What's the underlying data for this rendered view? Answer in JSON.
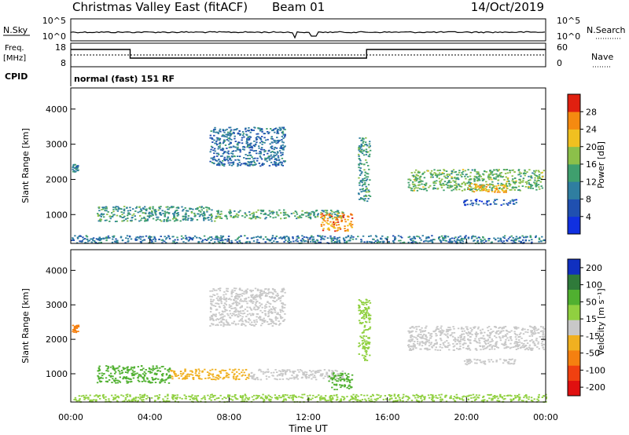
{
  "header": {
    "title": "Christmas Valley East (fitACF)",
    "beam": "Beam 01",
    "date": "14/Oct/2019"
  },
  "top_panels": {
    "nsky_label": "N.Sky",
    "nsky_ticks": [
      "10^5",
      "10^0"
    ],
    "nsearch_label": "N.Search",
    "nsearch_ticks": [
      "10^5",
      "10^0"
    ],
    "freq_label_1": "Freq.",
    "freq_label_2": "[MHz]",
    "freq_ticks": [
      "18",
      "8"
    ],
    "nave_label": "Nave",
    "nave_ticks": [
      "60",
      "0"
    ],
    "cpid_label": "CPID",
    "cpid_value": "normal (fast) 151 RF"
  },
  "chart_data": [
    {
      "type": "heatmap",
      "panel": "power",
      "ylabel": "Slant Range [km]",
      "yticks": [
        "1000",
        "2000",
        "3000",
        "4000"
      ],
      "ylim": [
        180,
        4600
      ],
      "xlim": [
        0,
        24
      ],
      "colorbar_label": "Power [dB]",
      "colorbar_ticks": [
        "4",
        "8",
        "12",
        "16",
        "20",
        "24",
        "28"
      ],
      "colorbar_range": [
        0,
        30
      ],
      "colors": [
        "#1030e0",
        "#2050b0",
        "#2f7ea0",
        "#3f9f6e",
        "#8cc04a",
        "#f0c020",
        "#f58a10",
        "#e02010"
      ],
      "echo_regions": [
        {
          "t_start": 0.05,
          "t_end": 0.35,
          "r_min": 2220,
          "r_max": 2450,
          "value": 10
        },
        {
          "t_start": 1.3,
          "t_end": 7.3,
          "r_min": 820,
          "r_max": 1250,
          "value": 12
        },
        {
          "t_start": 7.3,
          "t_end": 13.8,
          "r_min": 900,
          "r_max": 1150,
          "value": 13
        },
        {
          "t_start": 12.6,
          "t_end": 14.2,
          "r_min": 550,
          "r_max": 1050,
          "value": 24
        },
        {
          "t_start": 7.0,
          "t_end": 10.8,
          "r_min": 2400,
          "r_max": 3500,
          "value": 8
        },
        {
          "t_start": 14.5,
          "t_end": 15.1,
          "r_min": 1400,
          "r_max": 3200,
          "value": 12
        },
        {
          "t_start": 17.0,
          "t_end": 23.9,
          "r_min": 1700,
          "r_max": 2300,
          "value": 15
        },
        {
          "t_start": 20.0,
          "t_end": 22.0,
          "r_min": 1650,
          "r_max": 1900,
          "value": 22
        },
        {
          "t_start": 19.8,
          "t_end": 22.5,
          "r_min": 1280,
          "r_max": 1450,
          "value": 6
        },
        {
          "t_start": 0.0,
          "t_end": 24.0,
          "r_min": 200,
          "r_max": 420,
          "value": 9
        }
      ]
    },
    {
      "type": "heatmap",
      "panel": "velocity",
      "xlabel": "Time UT",
      "ylabel": "Slant Range [km]",
      "yticks": [
        "1000",
        "2000",
        "3000",
        "4000"
      ],
      "ylim": [
        180,
        4600
      ],
      "xlim": [
        0,
        24
      ],
      "xticks": [
        "00:00",
        "04:00",
        "08:00",
        "12:00",
        "16:00",
        "20:00",
        "00:00"
      ],
      "colorbar_label": "Velocity [m s⁻¹]",
      "colorbar_ticks": [
        "200",
        "100",
        "50",
        "15",
        "-15",
        "-50",
        "-100",
        "-200"
      ],
      "colors": [
        "#1030c0",
        "#2f7a3a",
        "#50b030",
        "#90d040",
        "#c8c8c8",
        "#f0b020",
        "#f58010",
        "#f04010",
        "#e01010"
      ],
      "echo_regions": [
        {
          "t_start": 0.05,
          "t_end": 0.35,
          "r_min": 2220,
          "r_max": 2450,
          "value": -60
        },
        {
          "t_start": 1.3,
          "t_end": 5.0,
          "r_min": 750,
          "r_max": 1250,
          "value": 60
        },
        {
          "t_start": 5.0,
          "t_end": 9.0,
          "r_min": 850,
          "r_max": 1150,
          "value": -40
        },
        {
          "t_start": 9.0,
          "t_end": 13.8,
          "r_min": 850,
          "r_max": 1150,
          "value": 0
        },
        {
          "t_start": 13.0,
          "t_end": 14.2,
          "r_min": 550,
          "r_max": 1050,
          "value": 60
        },
        {
          "t_start": 7.0,
          "t_end": 10.8,
          "r_min": 2400,
          "r_max": 3500,
          "value": 0
        },
        {
          "t_start": 14.5,
          "t_end": 15.1,
          "r_min": 1400,
          "r_max": 3200,
          "value": 40
        },
        {
          "t_start": 17.0,
          "t_end": 23.9,
          "r_min": 1700,
          "r_max": 2400,
          "value": 0
        },
        {
          "t_start": 19.8,
          "t_end": 22.5,
          "r_min": 1280,
          "r_max": 1450,
          "value": 0
        },
        {
          "t_start": 0.0,
          "t_end": 24.0,
          "r_min": 200,
          "r_max": 420,
          "value": 20
        }
      ]
    }
  ]
}
